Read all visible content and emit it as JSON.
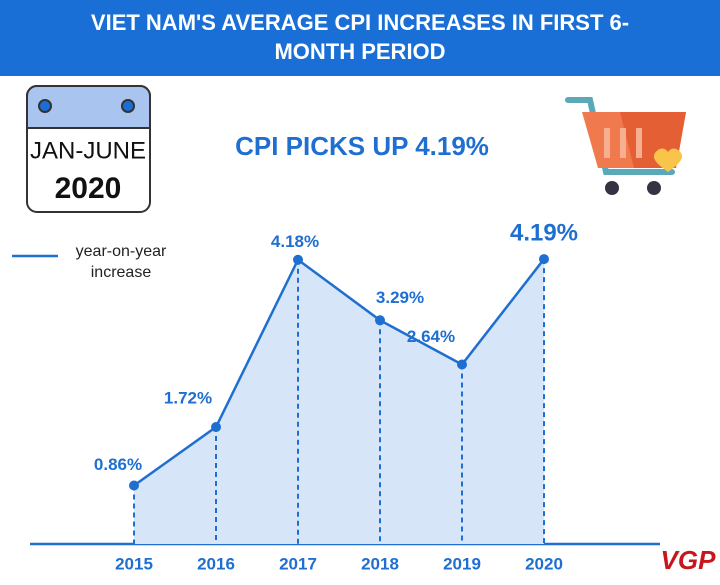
{
  "chart_data": {
    "type": "line",
    "title": "VIET NAM'S AVERAGE CPI INCREASES IN FIRST 6-MONTH PERIOD",
    "subtitle": "CPI PICKS UP 4.19%",
    "calendar": {
      "period": "JAN-JUNE",
      "year": "2020"
    },
    "categories": [
      "2015",
      "2016",
      "2017",
      "2018",
      "2019",
      "2020"
    ],
    "series": [
      {
        "name": "year-on-year increase",
        "color": "#1f6fd1",
        "values": [
          0.86,
          1.72,
          4.18,
          3.29,
          2.64,
          4.19
        ],
        "value_labels": [
          "0.86%",
          "1.72%",
          "4.18%",
          "3.29%",
          "2.64%",
          "4.19%"
        ]
      }
    ],
    "logo": "VGP"
  }
}
